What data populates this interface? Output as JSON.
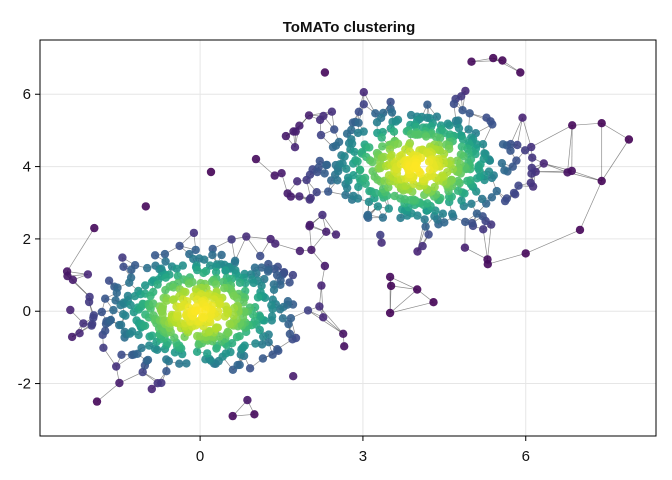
{
  "chart_data": {
    "type": "scatter",
    "title": "ToMATo clustering",
    "xlabel": "",
    "ylabel": "",
    "xlim": [
      -2.95,
      8.4
    ],
    "ylim": [
      -3.45,
      7.5
    ],
    "xticks": [
      0,
      3,
      6
    ],
    "yticks": [
      -2,
      0,
      2,
      4,
      6
    ],
    "tick_labels_x": [
      "0",
      "3",
      "6"
    ],
    "tick_labels_y": [
      "-2",
      "0",
      "2",
      "4",
      "6"
    ],
    "grid": true,
    "colormap": "viridis",
    "point_color_encoding": "density",
    "edges": "k-nearest-neighbor graph, drawn as thin grey lines",
    "clusters": [
      {
        "center": [
          0.0,
          0.0
        ],
        "spread": 0.95,
        "n_points_approx": 500
      },
      {
        "center": [
          4.0,
          4.0
        ],
        "spread": 0.95,
        "n_points_approx": 500
      }
    ],
    "outlier_points": [
      [
        -1.0,
        2.9
      ],
      [
        -1.95,
        2.3
      ],
      [
        -2.45,
        1.1
      ],
      [
        -1.9,
        -2.5
      ],
      [
        0.6,
        -2.9
      ],
      [
        1.0,
        -2.85
      ],
      [
        0.2,
        3.85
      ],
      [
        2.3,
        1.25
      ],
      [
        3.5,
        0.95
      ],
      [
        4.0,
        0.6
      ],
      [
        4.3,
        0.25
      ],
      [
        3.5,
        -0.05
      ],
      [
        2.3,
        6.6
      ],
      [
        5.0,
        6.9
      ],
      [
        5.4,
        7.0
      ],
      [
        5.9,
        6.6
      ],
      [
        7.4,
        5.2
      ],
      [
        7.9,
        4.75
      ],
      [
        7.4,
        3.6
      ],
      [
        7.0,
        2.25
      ],
      [
        6.0,
        1.6
      ],
      [
        5.3,
        1.3
      ],
      [
        4.1,
        1.8
      ],
      [
        5.1,
        2.7
      ]
    ],
    "colors": {
      "low_density": "#440154",
      "mid_density": "#21918c",
      "high_density": "#fde725",
      "edge": "#000000",
      "grid": "#e6e6e6",
      "frame": "#000000"
    }
  }
}
